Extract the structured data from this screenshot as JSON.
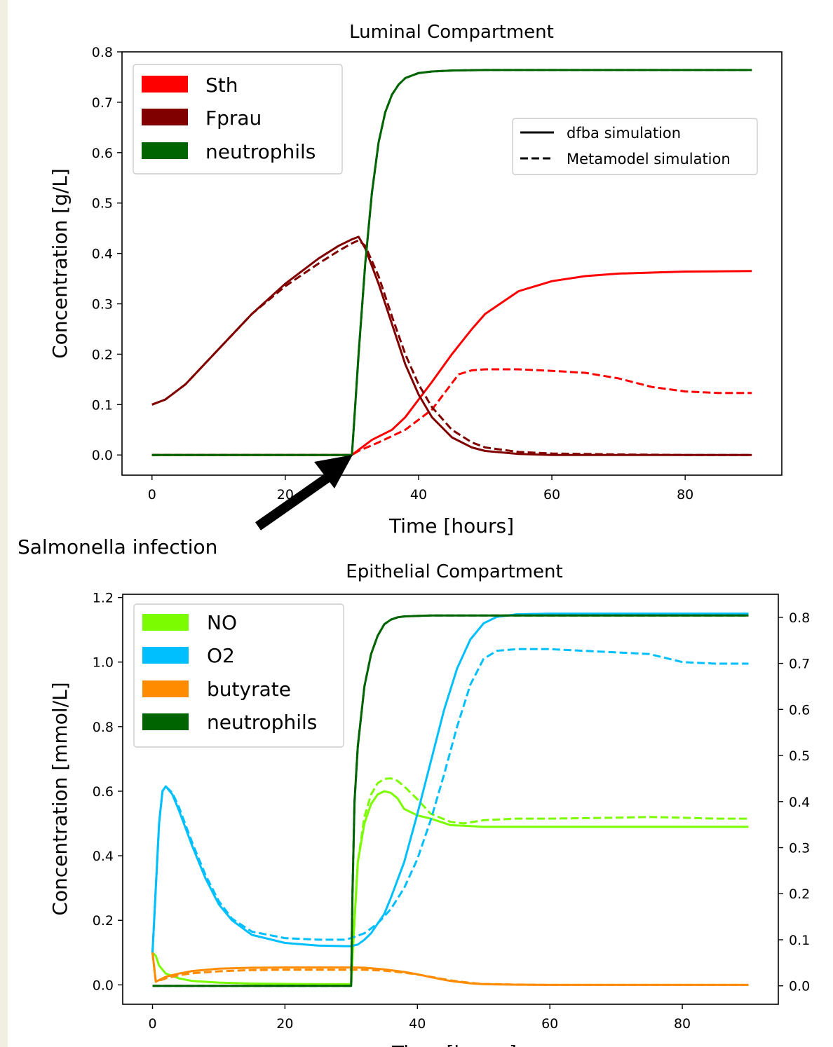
{
  "chart_data": [
    {
      "type": "line",
      "title": "Luminal Compartment",
      "xlabel": "Time [hours]",
      "ylabel": "Concentration [g/L]",
      "xlim": [
        -4.5,
        94.5
      ],
      "ylim": [
        -0.04,
        0.8
      ],
      "xticks": [
        0,
        20,
        40,
        60,
        80
      ],
      "yticks": [
        0.0,
        0.1,
        0.2,
        0.3,
        0.4,
        0.5,
        0.6,
        0.7,
        0.8
      ],
      "legend_location": "upper-left",
      "style_legend_location": "upper-right",
      "series": [
        {
          "name": "Sth",
          "color": "#ff0000",
          "style": "solid",
          "x": [
            0,
            10,
            20,
            29,
            30,
            31,
            33,
            36,
            38,
            40,
            42,
            45,
            48,
            50,
            55,
            60,
            65,
            70,
            80,
            90
          ],
          "y": [
            0,
            0,
            0,
            0,
            0,
            0.01,
            0.03,
            0.05,
            0.075,
            0.11,
            0.145,
            0.2,
            0.25,
            0.28,
            0.325,
            0.345,
            0.355,
            0.36,
            0.364,
            0.365
          ]
        },
        {
          "name": "Sth",
          "color": "#ff0000",
          "style": "dashed",
          "x": [
            0,
            10,
            20,
            29,
            30,
            31,
            34,
            38,
            42,
            44,
            46,
            48,
            50,
            55,
            60,
            65,
            70,
            75,
            80,
            85,
            90
          ],
          "y": [
            0,
            0,
            0,
            0,
            0,
            0.008,
            0.025,
            0.05,
            0.09,
            0.125,
            0.16,
            0.168,
            0.17,
            0.17,
            0.167,
            0.163,
            0.152,
            0.135,
            0.126,
            0.123,
            0.123
          ]
        },
        {
          "name": "Fprau",
          "color": "#800000",
          "style": "solid",
          "x": [
            0,
            2,
            5,
            10,
            15,
            20,
            25,
            28,
            30,
            31,
            32,
            34,
            36,
            38,
            40,
            42,
            45,
            48,
            50,
            55,
            60,
            70,
            80,
            90
          ],
          "y": [
            0.1,
            0.11,
            0.14,
            0.21,
            0.28,
            0.34,
            0.39,
            0.415,
            0.428,
            0.433,
            0.41,
            0.34,
            0.26,
            0.18,
            0.12,
            0.075,
            0.035,
            0.015,
            0.008,
            0.002,
            0,
            0,
            0,
            0
          ]
        },
        {
          "name": "Fprau",
          "color": "#800000",
          "style": "dashed",
          "x": [
            0,
            2,
            5,
            10,
            15,
            20,
            25,
            28,
            30,
            31,
            32,
            34,
            36,
            38,
            40,
            42,
            45,
            48,
            50,
            55,
            60,
            70,
            80,
            90
          ],
          "y": [
            0.1,
            0.11,
            0.14,
            0.21,
            0.28,
            0.335,
            0.38,
            0.405,
            0.42,
            0.426,
            0.415,
            0.355,
            0.275,
            0.2,
            0.14,
            0.095,
            0.05,
            0.025,
            0.015,
            0.006,
            0.003,
            0.001,
            0,
            0
          ]
        },
        {
          "name": "neutrophils",
          "color": "#006400",
          "style": "solid",
          "x": [
            0,
            10,
            20,
            29,
            30,
            30.5,
            31,
            32,
            33,
            34,
            35,
            36,
            37,
            38,
            40,
            42,
            45,
            50,
            60,
            90
          ],
          "y": [
            0,
            0,
            0,
            0,
            0,
            0.1,
            0.2,
            0.38,
            0.52,
            0.62,
            0.68,
            0.715,
            0.735,
            0.748,
            0.758,
            0.761,
            0.763,
            0.764,
            0.764,
            0.764
          ]
        },
        {
          "name": "neutrophils",
          "color": "#006400",
          "style": "dashed",
          "x": [
            0,
            10,
            20,
            29,
            30,
            30.5,
            31,
            32,
            33,
            34,
            35,
            36,
            37,
            38,
            40,
            42,
            45,
            50,
            60,
            90
          ],
          "y": [
            0,
            0,
            0,
            0,
            0,
            0.1,
            0.2,
            0.38,
            0.52,
            0.62,
            0.68,
            0.715,
            0.735,
            0.748,
            0.758,
            0.761,
            0.763,
            0.764,
            0.764,
            0.764
          ]
        }
      ],
      "annotation": {
        "text": "Salmonella infection",
        "x": 30,
        "y": 0
      }
    },
    {
      "type": "line",
      "title": "Epithelial Compartment",
      "xlabel": "Time [hours]",
      "ylabel": "Concentration [mmol/L]",
      "xlim": [
        -4.5,
        94.5
      ],
      "ylim": [
        -0.06,
        1.21
      ],
      "y2lim": [
        -0.04,
        0.85
      ],
      "xticks": [
        0,
        20,
        40,
        60,
        80
      ],
      "yticks": [
        0.0,
        0.2,
        0.4,
        0.6,
        0.8,
        1.0,
        1.2
      ],
      "y2ticks": [
        0.0,
        0.1,
        0.2,
        0.3,
        0.4,
        0.5,
        0.6,
        0.7,
        0.8
      ],
      "legend_location": "upper-left",
      "series": [
        {
          "name": "NO",
          "color": "#7cfc00",
          "style": "solid",
          "axis": "left",
          "x": [
            0,
            0.5,
            1,
            2,
            4,
            6,
            10,
            15,
            20,
            25,
            29,
            30,
            30.5,
            31,
            32,
            33,
            34,
            35,
            36,
            37,
            38,
            40,
            42,
            45,
            50,
            60,
            70,
            80,
            90
          ],
          "y": [
            0.1,
            0.09,
            0.06,
            0.035,
            0.02,
            0.012,
            0.007,
            0.004,
            0.003,
            0.002,
            0.002,
            0.002,
            0.2,
            0.38,
            0.5,
            0.56,
            0.59,
            0.6,
            0.595,
            0.578,
            0.545,
            0.525,
            0.515,
            0.495,
            0.49,
            0.49,
            0.49,
            0.49,
            0.49
          ]
        },
        {
          "name": "NO",
          "color": "#7cfc00",
          "style": "dashed",
          "axis": "left",
          "x": [
            30,
            30.5,
            31,
            32,
            33,
            34,
            35,
            36,
            37,
            38,
            40,
            42,
            45,
            47,
            50,
            55,
            60,
            70,
            75,
            80,
            85,
            90
          ],
          "y": [
            0.002,
            0.2,
            0.38,
            0.52,
            0.59,
            0.625,
            0.638,
            0.64,
            0.632,
            0.615,
            0.575,
            0.53,
            0.505,
            0.5,
            0.51,
            0.515,
            0.515,
            0.518,
            0.52,
            0.518,
            0.515,
            0.515
          ]
        },
        {
          "name": "O2",
          "color": "#00bfff",
          "style": "solid",
          "axis": "left",
          "x": [
            0,
            0.5,
            1,
            1.5,
            2,
            3,
            4,
            6,
            8,
            10,
            12,
            15,
            20,
            25,
            29,
            30,
            31,
            32,
            33,
            35,
            36,
            38,
            40,
            42,
            44,
            46,
            48,
            50,
            52,
            55,
            60,
            70,
            80,
            90
          ],
          "y": [
            0.1,
            0.3,
            0.5,
            0.6,
            0.615,
            0.59,
            0.54,
            0.43,
            0.33,
            0.25,
            0.2,
            0.155,
            0.13,
            0.122,
            0.12,
            0.12,
            0.125,
            0.14,
            0.16,
            0.22,
            0.27,
            0.38,
            0.53,
            0.69,
            0.85,
            0.98,
            1.07,
            1.12,
            1.14,
            1.148,
            1.15,
            1.15,
            1.15,
            1.15
          ]
        },
        {
          "name": "O2",
          "color": "#00bfff",
          "style": "dashed",
          "axis": "left",
          "x": [
            0,
            0.5,
            1,
            1.5,
            2,
            3,
            4,
            6,
            8,
            10,
            12,
            15,
            20,
            25,
            29,
            30,
            32,
            34,
            36,
            38,
            40,
            42,
            44,
            46,
            48,
            50,
            52,
            55,
            60,
            65,
            70,
            75,
            80,
            85,
            90
          ],
          "y": [
            0.1,
            0.3,
            0.5,
            0.6,
            0.615,
            0.595,
            0.55,
            0.44,
            0.34,
            0.26,
            0.205,
            0.165,
            0.145,
            0.14,
            0.14,
            0.145,
            0.16,
            0.19,
            0.235,
            0.3,
            0.39,
            0.51,
            0.65,
            0.8,
            0.93,
            1.01,
            1.035,
            1.04,
            1.04,
            1.035,
            1.03,
            1.025,
            1.0,
            0.995,
            0.995
          ]
        },
        {
          "name": "butyrate",
          "color": "#ff8c00",
          "style": "solid",
          "axis": "left",
          "x": [
            0,
            0.5,
            1,
            2,
            4,
            6,
            10,
            15,
            20,
            25,
            30,
            32,
            35,
            38,
            40,
            42,
            45,
            48,
            50,
            55,
            60,
            70,
            80,
            90
          ],
          "y": [
            0.1,
            0.01,
            0.015,
            0.025,
            0.035,
            0.043,
            0.05,
            0.053,
            0.054,
            0.054,
            0.054,
            0.053,
            0.048,
            0.04,
            0.033,
            0.024,
            0.012,
            0.005,
            0.002,
            0.0005,
            0,
            0,
            0,
            0
          ]
        },
        {
          "name": "butyrate",
          "color": "#ff8c00",
          "style": "dashed",
          "axis": "left",
          "x": [
            0,
            0.5,
            1,
            2,
            4,
            6,
            10,
            15,
            20,
            25,
            30,
            32,
            35,
            38,
            40,
            42,
            45,
            48,
            50,
            55,
            60,
            70,
            80,
            90
          ],
          "y": [
            0.1,
            0.01,
            0.013,
            0.02,
            0.03,
            0.036,
            0.042,
            0.046,
            0.047,
            0.047,
            0.047,
            0.047,
            0.044,
            0.038,
            0.032,
            0.025,
            0.014,
            0.006,
            0.003,
            0.001,
            0,
            0,
            0,
            0
          ]
        },
        {
          "name": "neutrophils",
          "color": "#006400",
          "style": "solid",
          "axis": "right",
          "x": [
            0,
            10,
            20,
            29,
            30,
            30.2,
            30.5,
            31,
            32,
            33,
            34,
            35,
            36,
            37,
            38,
            40,
            42,
            45,
            50,
            60,
            90
          ],
          "y": [
            0,
            0,
            0,
            0,
            0,
            0.2,
            0.4,
            0.52,
            0.65,
            0.72,
            0.76,
            0.785,
            0.795,
            0.8,
            0.802,
            0.803,
            0.804,
            0.804,
            0.804,
            0.804,
            0.804
          ]
        },
        {
          "name": "neutrophils",
          "color": "#006400",
          "style": "dashed",
          "axis": "right",
          "x": [
            0,
            10,
            20,
            29,
            30,
            30.2,
            30.5,
            31,
            32,
            33,
            34,
            35,
            36,
            37,
            38,
            40,
            42,
            45,
            50,
            60,
            90
          ],
          "y": [
            0,
            0,
            0,
            0,
            0,
            0.2,
            0.4,
            0.52,
            0.65,
            0.72,
            0.76,
            0.785,
            0.795,
            0.8,
            0.802,
            0.803,
            0.804,
            0.804,
            0.804,
            0.804,
            0.804
          ]
        }
      ]
    }
  ],
  "legend_style_labels": {
    "solid": "dfba simulation",
    "dashed": "Metamodel simulation"
  }
}
